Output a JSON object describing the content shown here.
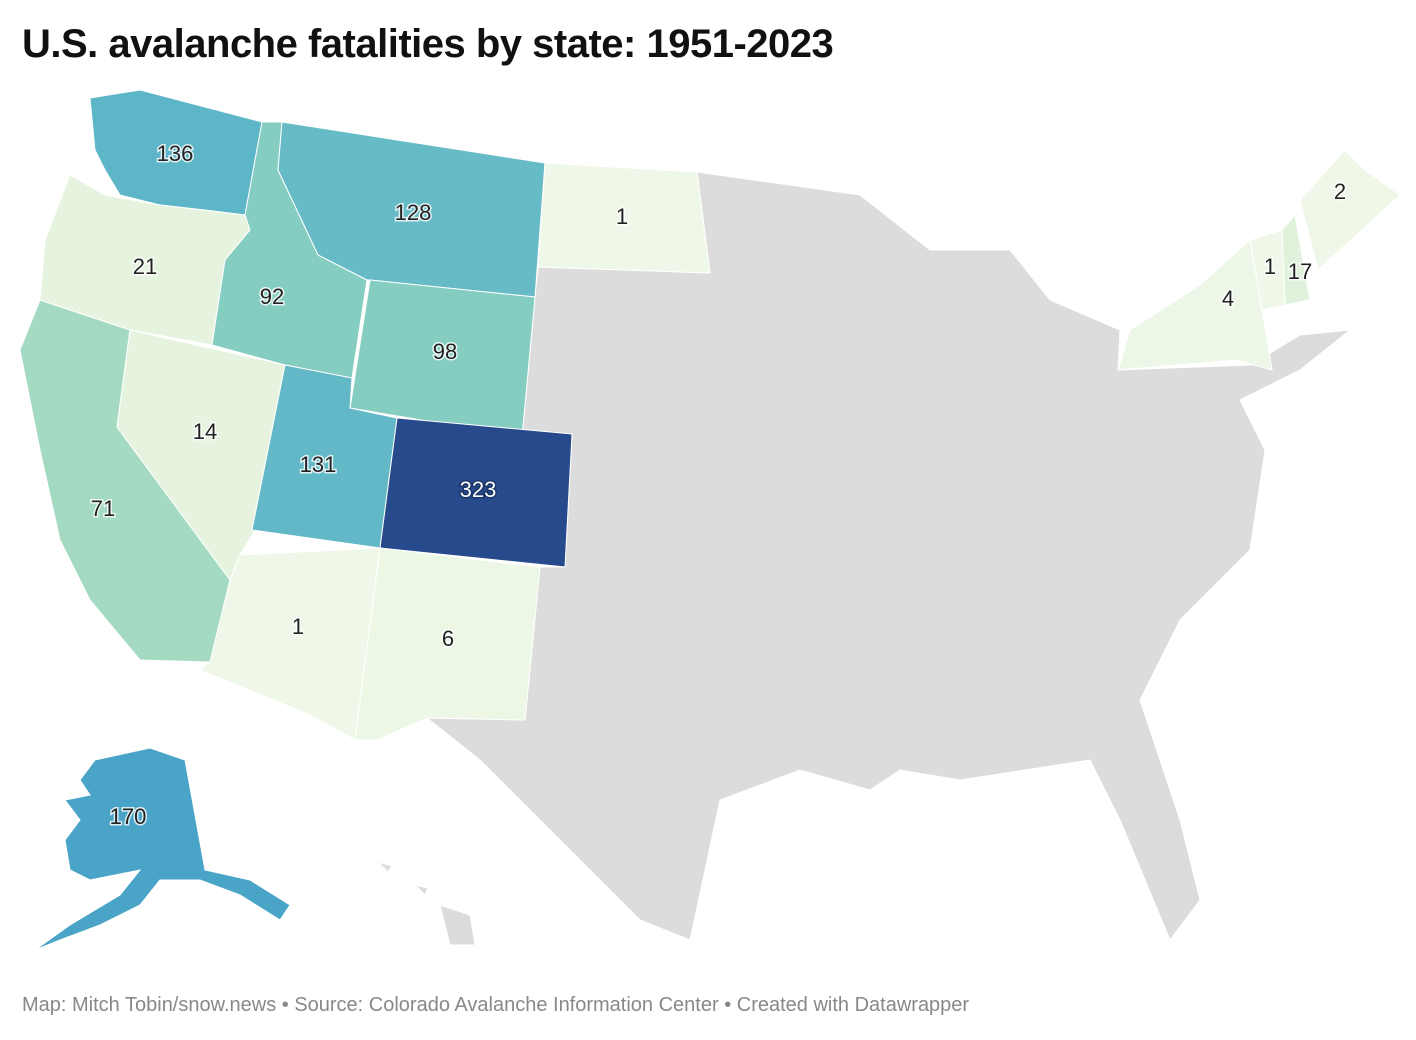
{
  "header": {
    "title": "U.S. avalanche fatalities by state: 1951-2023"
  },
  "chart_data": {
    "type": "choropleth",
    "states": [
      {
        "value": 136,
        "color": "#5db5c8"
      },
      {
        "value": 21,
        "color": "#e6f4df"
      },
      {
        "value": 71,
        "color": "#a3dac1"
      },
      {
        "value": 14,
        "color": "#e6f4df"
      },
      {
        "value": 92,
        "color": "#85cdc0"
      },
      {
        "value": 128,
        "color": "#67bbc6"
      },
      {
        "value": 98,
        "color": "#85cdc0"
      },
      {
        "value": 131,
        "color": "#63b8c7"
      },
      {
        "value": 323,
        "color": "#264a8c"
      },
      {
        "value": 1,
        "color": "#eff8e8"
      },
      {
        "value": 6,
        "color": "#ecf7e6"
      },
      {
        "value": 1,
        "color": "#eff8e8"
      },
      {
        "value": 170,
        "color": "#4aa4c8"
      },
      {
        "value": 2,
        "color": "#eff8e8"
      },
      {
        "value": 17,
        "color": "#e0f2dc"
      },
      {
        "value": 1,
        "color": "#eff8e8"
      },
      {
        "value": 4,
        "color": "#edf7e7"
      }
    ],
    "no_data_color": "#dcdcdc"
  },
  "footer": {
    "text": "Map: Mitch Tobin/snow.news • Source: Colorado Avalanche Information Center • Created with Datawrapper"
  }
}
